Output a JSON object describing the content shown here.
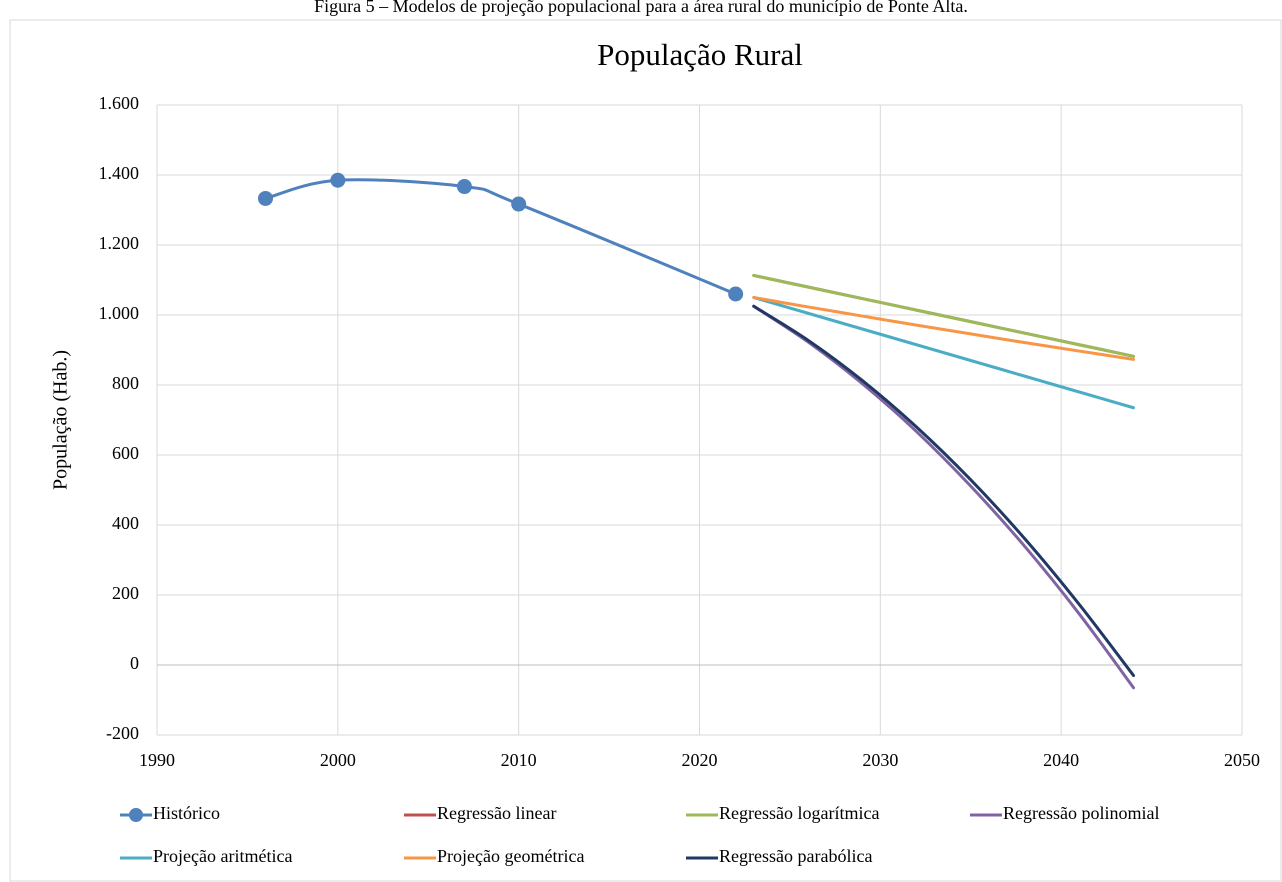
{
  "caption": "Figura 5 – Modelos de projeção populacional para a área rural do município de Ponte Alta.",
  "chart_data": {
    "type": "line",
    "title": "População Rural",
    "ylabel": "População (Hab.)",
    "xlim": [
      1990,
      2050
    ],
    "xticks": [
      1990,
      2000,
      2010,
      2020,
      2030,
      2040,
      2050
    ],
    "ylim": [
      -200,
      1600
    ],
    "yticks": [
      -200,
      0,
      200,
      400,
      600,
      800,
      {
        "value": 1000,
        "label": "1.000"
      },
      {
        "value": 1200,
        "label": "1.200"
      },
      {
        "value": 1400,
        "label": "1.400"
      },
      {
        "value": 1600,
        "label": "1.600"
      }
    ],
    "grid": true,
    "series": [
      {
        "name": "Histórico",
        "color": "#4f81bd",
        "marker": true,
        "x": [
          1996,
          2000,
          2007,
          2010,
          2022
        ],
        "values": [
          1333,
          1385,
          1367,
          1317,
          1060
        ]
      },
      {
        "name": "Regressão linear",
        "color": "#c0504d",
        "x": [
          2023,
          2026,
          2029,
          2032,
          2035,
          2038,
          2041,
          2044
        ],
        "values": [
          1113,
          1080,
          1047,
          1014,
          981,
          948,
          915,
          882
        ]
      },
      {
        "name": "Regressão logarítmica",
        "color": "#9bbb59",
        "x": [
          2023,
          2026,
          2029,
          2032,
          2035,
          2038,
          2041,
          2044
        ],
        "values": [
          1113,
          1080,
          1047,
          1014,
          981,
          948,
          915,
          882
        ]
      },
      {
        "name": "Regressão polinomial",
        "color": "#8064a2",
        "x": [
          2023,
          2026,
          2029,
          2032,
          2035,
          2038,
          2041,
          2044
        ],
        "values": [
          1025,
          923,
          804,
          667,
          511,
          338,
          146,
          -65
        ]
      },
      {
        "name": "Projeção aritmética",
        "color": "#4bacc6",
        "x": [
          2023,
          2026,
          2029,
          2032,
          2035,
          2038,
          2041,
          2044
        ],
        "values": [
          1050,
          1005,
          960,
          915,
          870,
          825,
          780,
          735
        ]
      },
      {
        "name": "Projeção geométrica",
        "color": "#f79646",
        "x": [
          2023,
          2026,
          2029,
          2032,
          2035,
          2038,
          2041,
          2044
        ],
        "values": [
          1050,
          1023,
          997,
          971,
          946,
          921,
          897,
          873
        ]
      },
      {
        "name": "Regressão parabólica",
        "color": "#1f3864",
        "x": [
          2023,
          2026,
          2029,
          2032,
          2035,
          2038,
          2041,
          2044
        ],
        "values": [
          1025,
          928,
          813,
          680,
          529,
          360,
          173,
          -30
        ]
      }
    ]
  }
}
